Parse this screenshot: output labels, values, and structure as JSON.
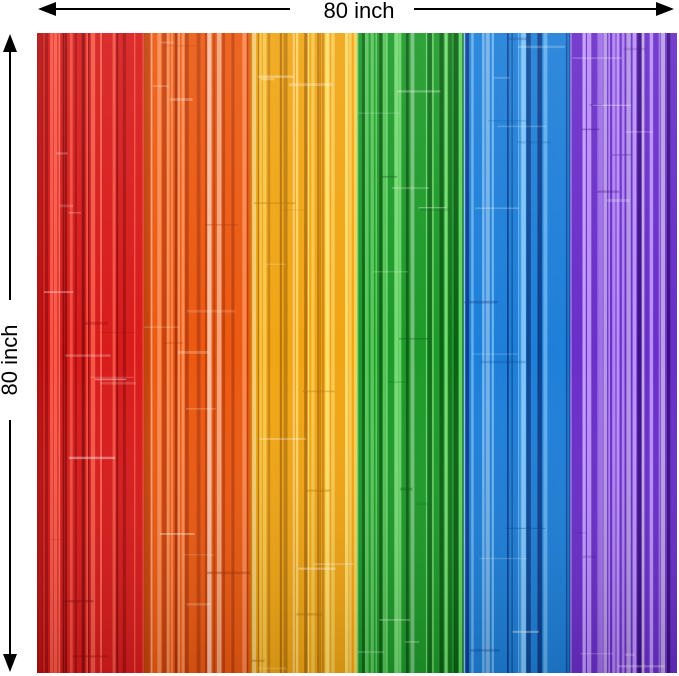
{
  "dimensions": {
    "width_label": "80 inch",
    "height_label": "80 inch"
  },
  "curtain": {
    "description_colors": [
      {
        "name": "red",
        "base": "#d81c1c",
        "light": "#ff6a55",
        "dark": "#8c0a0a"
      },
      {
        "name": "orange",
        "base": "#ec5a12",
        "light": "#ffa070",
        "dark": "#a8320a"
      },
      {
        "name": "yellow",
        "base": "#f0a516",
        "light": "#ffe070",
        "dark": "#b2700a"
      },
      {
        "name": "green",
        "base": "#1e9a2a",
        "light": "#7de07a",
        "dark": "#0c5a14"
      },
      {
        "name": "blue",
        "base": "#1f7fd8",
        "light": "#8fd0ff",
        "dark": "#0d3f8a"
      },
      {
        "name": "purple",
        "base": "#6a2fc8",
        "light": "#c39bff",
        "dark": "#3a0e80"
      }
    ]
  }
}
